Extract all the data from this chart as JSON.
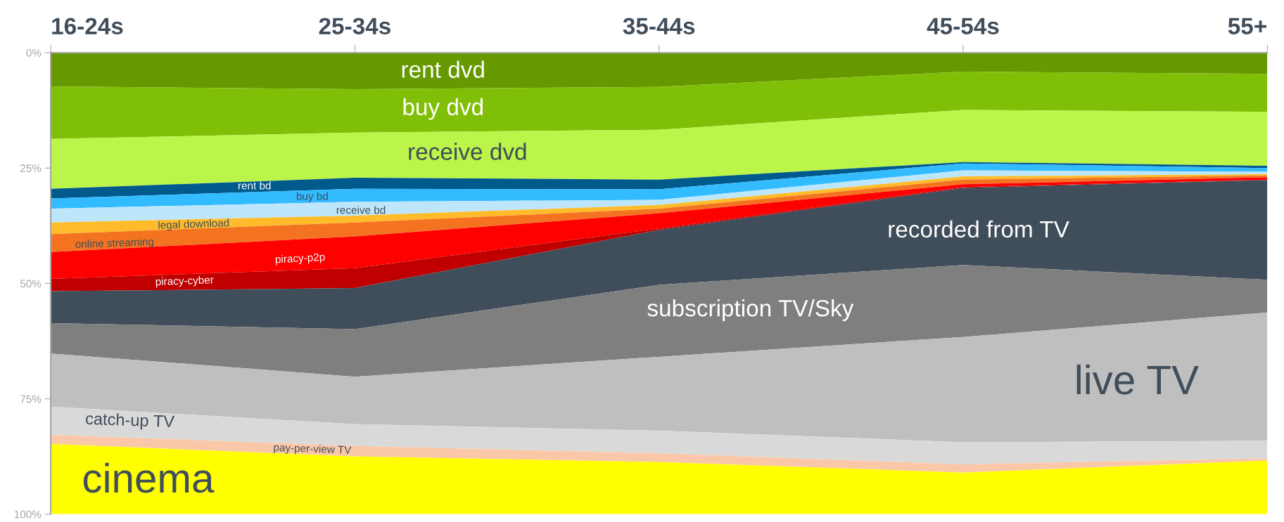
{
  "chart_data": {
    "type": "area",
    "stacked": true,
    "legend": false,
    "grid": false,
    "categories": [
      "16-24s",
      "25-34s",
      "35-44s",
      "45-54s",
      "55+"
    ],
    "ylim": [
      100,
      0
    ],
    "yticks": [
      {
        "value": 0,
        "label": "0%"
      },
      {
        "value": 25,
        "label": "25%"
      },
      {
        "value": 50,
        "label": "50%"
      },
      {
        "value": 75,
        "label": "75%"
      },
      {
        "value": 100,
        "label": "100%"
      }
    ],
    "series": [
      {
        "name": "rent dvd",
        "color": "#669900",
        "values": [
          7.3,
          7.9,
          7.4,
          4.1,
          4.6
        ]
      },
      {
        "name": "buy dvd",
        "color": "#80bf07",
        "values": [
          11.4,
          9.4,
          9.3,
          8.3,
          8.2
        ]
      },
      {
        "name": "receive dvd",
        "color": "#bbf54a",
        "values": [
          10.8,
          9.8,
          10.8,
          11.3,
          11.7
        ]
      },
      {
        "name": "rent bd",
        "color": "#005a8c",
        "values": [
          2.1,
          2.4,
          2.1,
          0.3,
          0.5
        ]
      },
      {
        "name": "buy bd",
        "color": "#33bbff",
        "values": [
          2.2,
          2.8,
          2.3,
          1.5,
          0.8
        ]
      },
      {
        "name": "receive bd",
        "color": "#bde6fb",
        "values": [
          3.0,
          3.0,
          1.1,
          1.3,
          0.5
        ]
      },
      {
        "name": "legal download",
        "color": "#ffbb2a",
        "values": [
          2.5,
          1.5,
          0.8,
          0.7,
          0.3
        ]
      },
      {
        "name": "online streaming",
        "color": "#f47321",
        "values": [
          3.9,
          3.0,
          1.0,
          1.0,
          0.4
        ]
      },
      {
        "name": "piracy-p2p",
        "color": "#ff0000",
        "values": [
          5.8,
          6.9,
          3.3,
          0.6,
          0.5
        ]
      },
      {
        "name": "piracy-cyber",
        "color": "#c00000",
        "values": [
          2.7,
          4.3,
          0.3,
          0.2,
          0.1
        ]
      },
      {
        "name": "recorded from TV",
        "color": "#404d5a",
        "values": [
          6.9,
          8.9,
          11.9,
          16.7,
          21.6
        ]
      },
      {
        "name": "subscription TV/Sky",
        "color": "#7f7f7f",
        "values": [
          6.6,
          10.3,
          15.6,
          15.6,
          7.1
        ]
      },
      {
        "name": "live TV",
        "color": "#bfbfbf",
        "values": [
          11.5,
          10.3,
          16.0,
          22.8,
          27.8
        ]
      },
      {
        "name": "catch-up TV",
        "color": "#d9d9d9",
        "values": [
          6.1,
          4.7,
          4.9,
          4.8,
          3.8
        ]
      },
      {
        "name": "pay-per-view TV",
        "color": "#fac8a8",
        "values": [
          2.0,
          2.3,
          1.9,
          1.8,
          0.5
        ]
      },
      {
        "name": "cinema",
        "color": "#ffff00",
        "values": [
          15.2,
          12.5,
          11.3,
          9.0,
          11.6
        ]
      }
    ]
  }
}
